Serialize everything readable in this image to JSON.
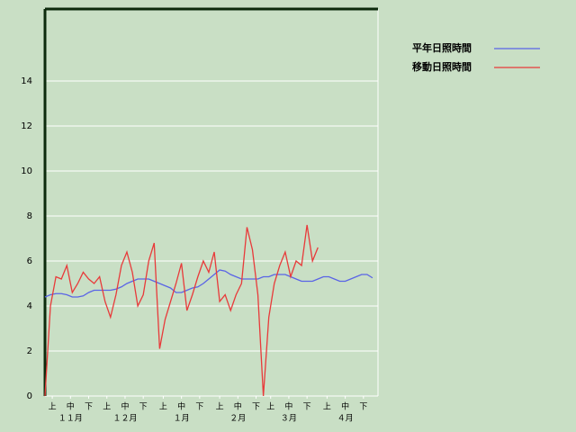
{
  "chart_data": {
    "type": "line",
    "x": [
      0,
      3,
      6,
      9,
      12,
      15,
      18,
      21,
      24,
      27,
      30,
      33,
      36,
      39,
      42,
      45,
      48,
      51,
      54,
      57,
      60,
      63,
      66,
      69,
      72,
      75,
      78,
      81,
      84,
      87,
      90,
      93,
      96,
      99,
      102,
      105,
      108,
      111,
      114,
      117,
      120,
      123,
      126,
      129,
      132,
      135,
      138,
      141,
      144,
      147,
      150,
      153,
      156,
      159,
      162,
      165,
      168,
      171,
      174,
      177,
      180
    ],
    "series": [
      {
        "name": "平年日照時間",
        "color": "#5a64e6",
        "values": [
          4.4,
          4.5,
          4.55,
          4.55,
          4.5,
          4.4,
          4.4,
          4.45,
          4.6,
          4.7,
          4.7,
          4.7,
          4.7,
          4.75,
          4.85,
          5.0,
          5.1,
          5.2,
          5.2,
          5.2,
          5.1,
          5.0,
          4.9,
          4.8,
          4.6,
          4.6,
          4.7,
          4.8,
          4.85,
          5.0,
          5.2,
          5.4,
          5.6,
          5.55,
          5.4,
          5.3,
          5.2,
          5.2,
          5.2,
          5.2,
          5.3,
          5.3,
          5.4,
          5.4,
          5.4,
          5.3,
          5.2,
          5.1,
          5.1,
          5.1,
          5.2,
          5.3,
          5.3,
          5.2,
          5.1,
          5.1,
          5.2,
          5.3,
          5.4,
          5.4,
          5.25
        ]
      },
      {
        "name": "移動日照時間",
        "color": "#e83a3a",
        "values": [
          0,
          4.0,
          5.3,
          5.2,
          5.8,
          4.6,
          5.0,
          5.5,
          5.2,
          5.0,
          5.3,
          4.2,
          3.5,
          4.5,
          5.8,
          6.4,
          5.5,
          4.0,
          4.5,
          6.0,
          6.8,
          2.1,
          3.4,
          4.2,
          5.0,
          5.9,
          3.8,
          4.5,
          5.3,
          6.0,
          5.5,
          6.4,
          4.2,
          4.5,
          3.8,
          4.5,
          5.0,
          7.5,
          6.5,
          4.5,
          0,
          3.5,
          5.0,
          5.8,
          6.4,
          5.3,
          6.0,
          5.8,
          7.6,
          6.0,
          6.6,
          null,
          null,
          null,
          null,
          null,
          null,
          null,
          null,
          null,
          null
        ]
      }
    ],
    "xlim": [
      0,
      183
    ],
    "xticks": [
      {
        "value": 4,
        "label": "上"
      },
      {
        "value": 14,
        "label": "中"
      },
      {
        "value": 24,
        "label": "下"
      },
      {
        "value": 34,
        "label": "上"
      },
      {
        "value": 44,
        "label": "中"
      },
      {
        "value": 54,
        "label": "下"
      },
      {
        "value": 65,
        "label": "上"
      },
      {
        "value": 75,
        "label": "中"
      },
      {
        "value": 85,
        "label": "下"
      },
      {
        "value": 96,
        "label": "上"
      },
      {
        "value": 106,
        "label": "中"
      },
      {
        "value": 116,
        "label": "下"
      },
      {
        "value": 124,
        "label": "上"
      },
      {
        "value": 134,
        "label": "中"
      },
      {
        "value": 144,
        "label": "下"
      },
      {
        "value": 155,
        "label": "上"
      },
      {
        "value": 165,
        "label": "中"
      },
      {
        "value": 175,
        "label": "下"
      }
    ],
    "month_labels": [
      {
        "value": 14,
        "label": "１１月"
      },
      {
        "value": 44,
        "label": "１２月"
      },
      {
        "value": 75,
        "label": "１月"
      },
      {
        "value": 106,
        "label": "２月"
      },
      {
        "value": 134,
        "label": "３月"
      },
      {
        "value": 165,
        "label": "４月"
      }
    ],
    "ylim": [
      0,
      17.2
    ],
    "yticks": [
      0,
      2,
      4,
      6,
      8,
      10,
      12,
      14
    ],
    "grid": true,
    "legend": "top-right"
  }
}
